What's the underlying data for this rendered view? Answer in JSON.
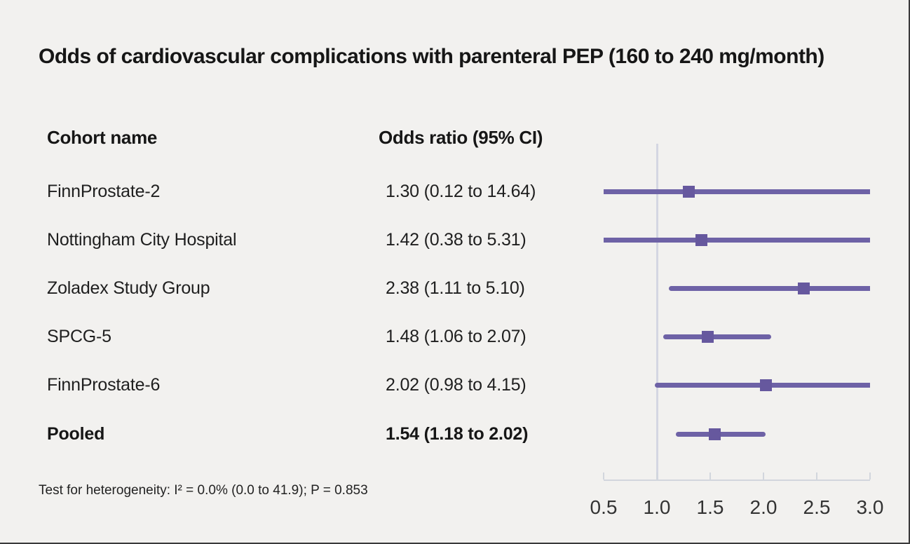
{
  "title": "Odds of cardiovascular complications with parenteral PEP (160 to 240 mg/month)",
  "table": {
    "col1_header": "Cohort name",
    "col2_header": "Odds ratio (95% CI)"
  },
  "footnote": "Test for heterogeneity: I² = 0.0% (0.0 to 41.9); P = 0.853",
  "colors": {
    "background": "#f2f1ef",
    "text": "#1a1a1a",
    "ci_line": "#6e62a6",
    "marker": "#66589e",
    "axis": "#d2d6dd",
    "reference_line": "#d4d6e2"
  },
  "chart_data": {
    "type": "scatter",
    "subtype": "forest-plot",
    "title": "Odds of cardiovascular complications with parenteral PEP (160 to 240 mg/month)",
    "xlabel": "Odds ratio (95% CI)",
    "xlim": [
      0.5,
      3.0
    ],
    "x_ticks": [
      "0.5",
      "1.0",
      "1.5",
      "2.0",
      "2.5",
      "3.0"
    ],
    "reference_line_x": 1.0,
    "grid": false,
    "legend": false,
    "rows": [
      {
        "label": "FinnProstate-2",
        "or_text": "1.30 (0.12 to 14.64)",
        "or": 1.3,
        "ci_low": 0.12,
        "ci_high": 14.64,
        "pooled": false
      },
      {
        "label": "Nottingham City Hospital",
        "or_text": "1.42 (0.38 to 5.31)",
        "or": 1.42,
        "ci_low": 0.38,
        "ci_high": 5.31,
        "pooled": false
      },
      {
        "label": "Zoladex Study Group",
        "or_text": "2.38 (1.11 to 5.10)",
        "or": 2.38,
        "ci_low": 1.11,
        "ci_high": 5.1,
        "pooled": false
      },
      {
        "label": "SPCG-5",
        "or_text": "1.48 (1.06 to 2.07)",
        "or": 1.48,
        "ci_low": 1.06,
        "ci_high": 2.07,
        "pooled": false
      },
      {
        "label": "FinnProstate-6",
        "or_text": "2.02 (0.98 to 4.15)",
        "or": 2.02,
        "ci_low": 0.98,
        "ci_high": 4.15,
        "pooled": false
      },
      {
        "label": "Pooled",
        "or_text": "1.54 (1.18 to 2.02)",
        "or": 1.54,
        "ci_low": 1.18,
        "ci_high": 2.02,
        "pooled": true
      }
    ],
    "annotations": [
      "Test for heterogeneity: I² = 0.0% (0.0 to 41.9); P = 0.853"
    ]
  }
}
